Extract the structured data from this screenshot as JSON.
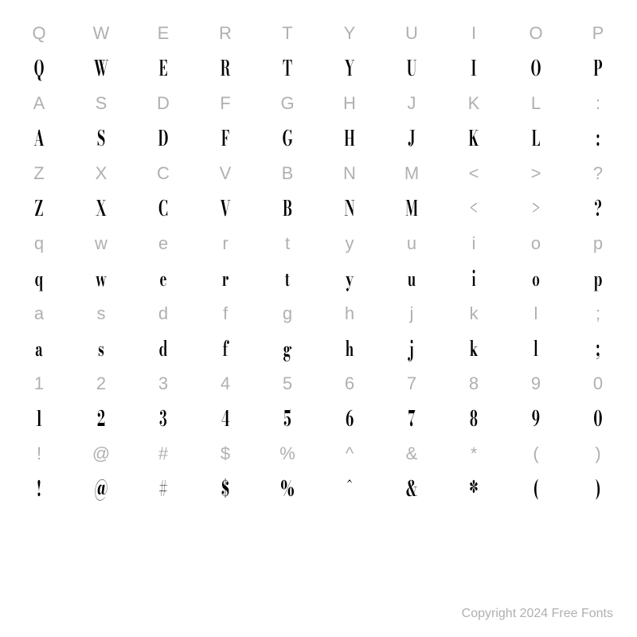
{
  "rows": [
    {
      "type": "label",
      "cells": [
        "Q",
        "W",
        "E",
        "R",
        "T",
        "Y",
        "U",
        "I",
        "O",
        "P"
      ]
    },
    {
      "type": "glyph",
      "cells": [
        "Q",
        "W",
        "E",
        "R",
        "T",
        "Y",
        "U",
        "I",
        "O",
        "P"
      ]
    },
    {
      "type": "label",
      "cells": [
        "A",
        "S",
        "D",
        "F",
        "G",
        "H",
        "J",
        "K",
        "L",
        ":"
      ]
    },
    {
      "type": "glyph",
      "cells": [
        "A",
        "S",
        "D",
        "F",
        "G",
        "H",
        "J",
        "K",
        "L",
        ":"
      ]
    },
    {
      "type": "label",
      "cells": [
        "Z",
        "X",
        "C",
        "V",
        "B",
        "N",
        "M",
        "<",
        ">",
        "?"
      ]
    },
    {
      "type": "glyph",
      "cells": [
        "Z",
        "X",
        "C",
        "V",
        "B",
        "N",
        "M",
        "<",
        ">",
        "?"
      ]
    },
    {
      "type": "label",
      "cells": [
        "q",
        "w",
        "e",
        "r",
        "t",
        "y",
        "u",
        "i",
        "o",
        "p"
      ]
    },
    {
      "type": "glyph",
      "cells": [
        "q",
        "w",
        "e",
        "r",
        "t",
        "y",
        "u",
        "i",
        "o",
        "p"
      ]
    },
    {
      "type": "label",
      "cells": [
        "a",
        "s",
        "d",
        "f",
        "g",
        "h",
        "j",
        "k",
        "l",
        ";"
      ]
    },
    {
      "type": "glyph",
      "cells": [
        "a",
        "s",
        "d",
        "f",
        "g",
        "h",
        "j",
        "k",
        "l",
        ";"
      ]
    },
    {
      "type": "label",
      "cells": [
        "1",
        "2",
        "3",
        "4",
        "5",
        "6",
        "7",
        "8",
        "9",
        "0"
      ]
    },
    {
      "type": "glyph",
      "cells": [
        "1",
        "2",
        "3",
        "4",
        "5",
        "6",
        "7",
        "8",
        "9",
        "0"
      ]
    },
    {
      "type": "label",
      "cells": [
        "!",
        "@",
        "#",
        "$",
        "%",
        "^",
        "&",
        "*",
        "(",
        ")"
      ]
    },
    {
      "type": "glyph",
      "cells": [
        "!",
        "@",
        "#",
        "$",
        "%",
        "^",
        "&",
        "*",
        "(",
        ")"
      ]
    }
  ],
  "copyright": "Copyright 2024 Free Fonts",
  "colors": {
    "label": "#b0b0b0",
    "glyph": "#000000",
    "background": "#ffffff"
  },
  "typography": {
    "label_fontsize": 22,
    "glyph_fontsize": 26,
    "copyright_fontsize": 16,
    "glyph_font": "Bodoni condensed / Didot style"
  }
}
